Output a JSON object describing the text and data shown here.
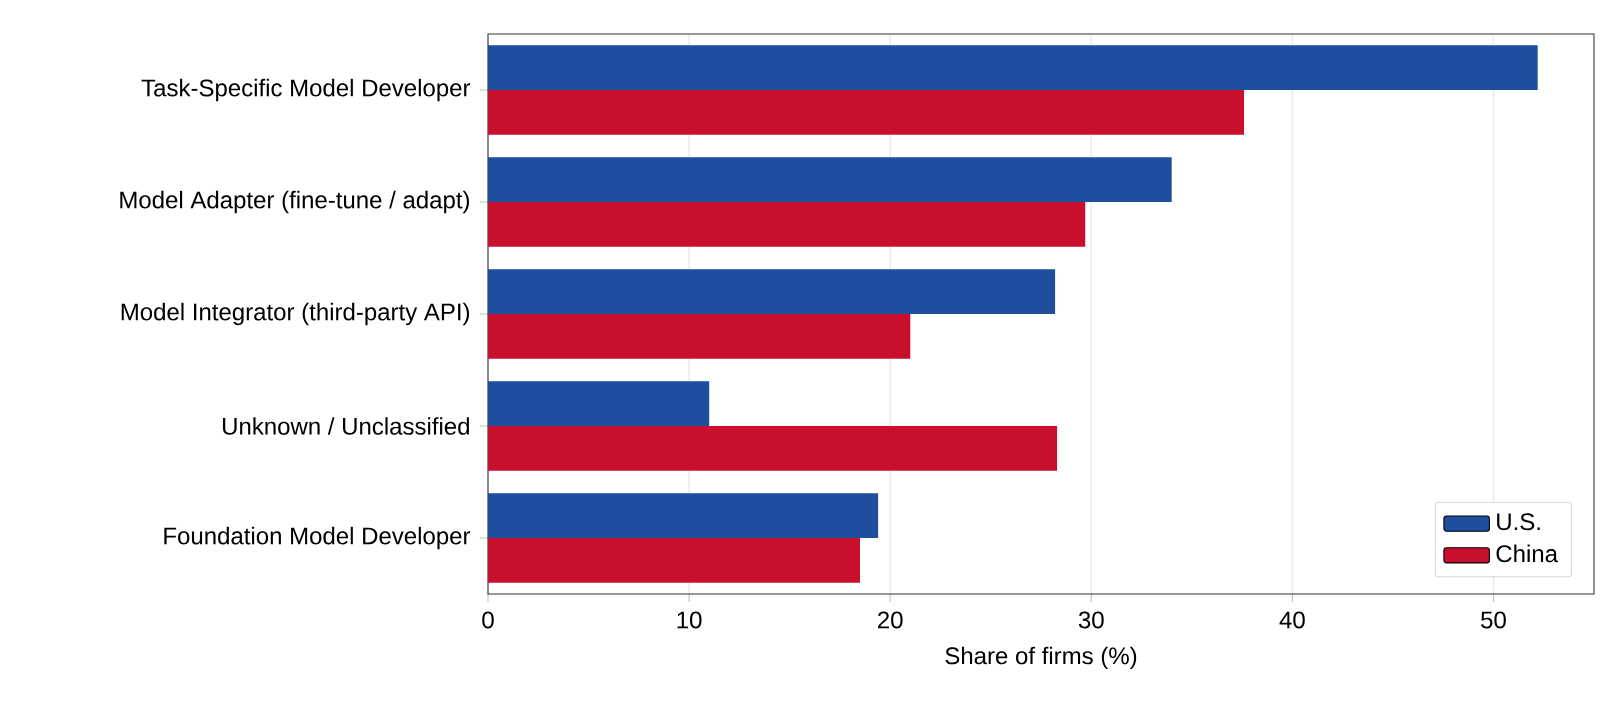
{
  "chart_data": {
    "type": "bar",
    "orientation": "horizontal",
    "xlabel": "Share of firms (%)",
    "categories": [
      "Task-Specific Model Developer",
      "Model Adapter (fine-tune / adapt)",
      "Model Integrator (third-party API)",
      "Unknown / Unclassified",
      "Foundation Model Developer"
    ],
    "series": [
      {
        "name": "U.S.",
        "color": "#1f4e9f",
        "values": [
          52.2,
          34.0,
          28.2,
          11.0,
          19.4
        ]
      },
      {
        "name": "China",
        "color": "#c8102e",
        "values": [
          37.6,
          29.7,
          21.0,
          28.3,
          18.5
        ]
      }
    ],
    "xlim": [
      0,
      55
    ],
    "xticks": [
      0,
      10,
      20,
      30,
      40,
      50
    ],
    "grid": "x",
    "legend": "bottom right"
  }
}
